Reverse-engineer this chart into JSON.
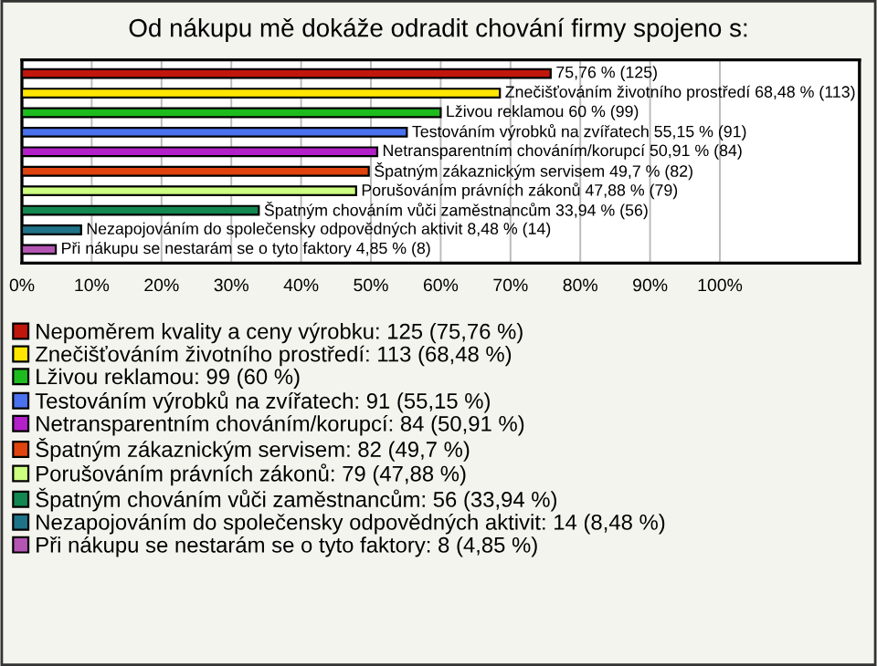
{
  "chart_data": {
    "type": "bar",
    "orientation": "horizontal",
    "title": "Od nákupu mě dokáže odradit chování firmy spojeno s:",
    "categories": [
      null,
      null,
      null,
      null,
      null,
      null,
      null,
      null,
      null,
      null
    ],
    "series": [
      {
        "name": "Nepoměrem kvality a ceny výrobku: 125 (75,76 %)",
        "color": "#c0160c",
        "values": [
          75.76,
          null,
          null,
          null,
          null,
          null,
          null,
          null,
          null,
          null
        ],
        "value_labels": [
          "75,76 % (125)",
          null,
          null,
          null,
          null,
          null,
          null,
          null,
          null,
          null
        ]
      },
      {
        "name": "Znečišťováním životního prostředí: 113 (68,48 %)",
        "color": "#ffe600",
        "values": [
          null,
          68.48,
          null,
          null,
          null,
          null,
          null,
          null,
          null,
          null
        ],
        "value_labels": [
          null,
          "Znečišťováním životního prostředí 68,48 % (113)",
          null,
          null,
          null,
          null,
          null,
          null,
          null,
          null
        ]
      },
      {
        "name": "Lživou reklamou: 99 (60 %)",
        "color": "#1ebb1e",
        "values": [
          null,
          null,
          60,
          null,
          null,
          null,
          null,
          null,
          null,
          null
        ],
        "value_labels": [
          null,
          null,
          "Lživou reklamou 60 % (99)",
          null,
          null,
          null,
          null,
          null,
          null,
          null
        ]
      },
      {
        "name": "Testováním výrobků na zvířatech: 91 (55,15 %)",
        "color": "#4a72ee",
        "values": [
          null,
          null,
          null,
          55.15,
          null,
          null,
          null,
          null,
          null,
          null
        ],
        "value_labels": [
          null,
          null,
          null,
          "Testováním výrobků na zvířatech 55,15 % (91)",
          null,
          null,
          null,
          null,
          null,
          null
        ]
      },
      {
        "name": "Netransparentním chováním/korupcí: 84 (50,91 %)",
        "color": "#b31fc8",
        "values": [
          null,
          null,
          null,
          null,
          50.91,
          null,
          null,
          null,
          null,
          null
        ],
        "value_labels": [
          null,
          null,
          null,
          null,
          "Netransparentním chováním/korupcí 50,91 % (84)",
          null,
          null,
          null,
          null,
          null
        ]
      },
      {
        "name": "Špatným zákaznickým servisem: 82 (49,7 %)",
        "color": "#e0440e",
        "values": [
          null,
          null,
          null,
          null,
          null,
          49.7,
          null,
          null,
          null,
          null
        ],
        "value_labels": [
          null,
          null,
          null,
          null,
          null,
          "Špatným zákaznickým servisem 49,7 % (82)",
          null,
          null,
          null,
          null
        ]
      },
      {
        "name": "Porušováním právních zákonů: 79 (47,88 %)",
        "color": "#ccff80",
        "values": [
          null,
          null,
          null,
          null,
          null,
          null,
          47.88,
          null,
          null,
          null
        ],
        "value_labels": [
          null,
          null,
          null,
          null,
          null,
          null,
          "Porušováním právních zákonů 47,88 % (79)",
          null,
          null,
          null
        ]
      },
      {
        "name": "Špatným chováním vůči zaměstnancům: 56 (33,94 %)",
        "color": "#12874f",
        "values": [
          null,
          null,
          null,
          null,
          null,
          null,
          null,
          33.94,
          null,
          null
        ],
        "value_labels": [
          null,
          null,
          null,
          null,
          null,
          null,
          null,
          "Špatným chováním vůči zaměstnancům 33,94 % (56)",
          null,
          null
        ]
      },
      {
        "name": "Nezapojováním do společensky odpovědných aktivit: 14 (8,48 %)",
        "color": "#1f7388",
        "values": [
          null,
          null,
          null,
          null,
          null,
          null,
          null,
          null,
          8.48,
          null
        ],
        "value_labels": [
          null,
          null,
          null,
          null,
          null,
          null,
          null,
          null,
          "Nezapojováním do společensky odpovědných aktivit 8,48 % (14)",
          null
        ]
      },
      {
        "name": "Při nákupu se nestarám se o tyto faktory: 8 (4,85 %)",
        "color": "#b455b4",
        "values": [
          null,
          null,
          null,
          null,
          null,
          null,
          null,
          null,
          null,
          4.85
        ],
        "value_labels": [
          null,
          null,
          null,
          null,
          null,
          null,
          null,
          null,
          null,
          "Při nákupu se nestarám se o tyto faktory 4,85 % (8)"
        ]
      }
    ],
    "xlim": [
      0,
      120
    ],
    "xticks": [
      {
        "value": 0,
        "label": "0%"
      },
      {
        "value": 10,
        "label": "10%"
      },
      {
        "value": 20,
        "label": "20%"
      },
      {
        "value": 30,
        "label": "30%"
      },
      {
        "value": 40,
        "label": "40%"
      },
      {
        "value": 50,
        "label": "50%"
      },
      {
        "value": 60,
        "label": "60%"
      },
      {
        "value": 70,
        "label": "70%"
      },
      {
        "value": 80,
        "label": "80%"
      },
      {
        "value": 90,
        "label": "90%"
      },
      {
        "value": 100,
        "label": "100%"
      }
    ],
    "grid": "x",
    "legend": "bottom",
    "tick_labels": "x"
  }
}
